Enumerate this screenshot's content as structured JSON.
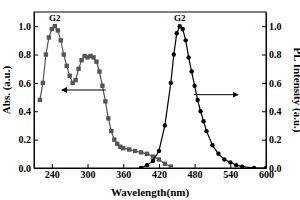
{
  "chart_data": {
    "type": "line",
    "x_label": "Wavelength(nm)",
    "y_label": "Abs. (a.u.)",
    "y2_label": "PL Intensity (a.u.)",
    "annotations": [
      "G2",
      "G2"
    ],
    "xlim": [
      210,
      600
    ],
    "xticks": [
      240,
      300,
      360,
      420,
      480,
      540,
      600
    ],
    "ylim": [
      0,
      1.1
    ],
    "yticks": [
      {
        "value": 0,
        "label": "0.0"
      },
      0.2,
      0.4,
      0.6,
      0.8,
      {
        "value": 1,
        "label": "1.0"
      }
    ],
    "y2lim": [
      0,
      1.1
    ],
    "y2ticks": [
      {
        "value": 0,
        "label": "0.0"
      },
      0.2,
      0.4,
      0.6,
      0.8,
      {
        "value": 1,
        "label": "1.0"
      }
    ],
    "series": [
      {
        "color": "#555555",
        "marker": "square",
        "line_style": "solid",
        "x": [
          220,
          225,
          230,
          235,
          240,
          245,
          250,
          255,
          260,
          265,
          270,
          275,
          280,
          285,
          290,
          295,
          300,
          305,
          310,
          315,
          320,
          325,
          330,
          335,
          340,
          345,
          350,
          355,
          360,
          370,
          380,
          390,
          400,
          410,
          420,
          430,
          440
        ],
        "values": [
          0.48,
          0.6,
          0.8,
          0.92,
          0.98,
          1.0,
          0.97,
          0.9,
          0.8,
          0.72,
          0.65,
          0.6,
          0.62,
          0.7,
          0.76,
          0.79,
          0.78,
          0.79,
          0.78,
          0.75,
          0.68,
          0.58,
          0.47,
          0.35,
          0.26,
          0.2,
          0.17,
          0.15,
          0.14,
          0.13,
          0.12,
          0.11,
          0.1,
          0.08,
          0.06,
          0.03,
          0.01
        ]
      },
      {
        "color": "#000000",
        "marker": "circle",
        "line_style": "solid",
        "axis": "y2",
        "x": [
          390,
          400,
          410,
          420,
          430,
          440,
          445,
          450,
          455,
          460,
          465,
          470,
          475,
          480,
          485,
          490,
          495,
          500,
          510,
          520,
          530,
          540,
          550,
          560,
          580,
          600
        ],
        "values": [
          0.0,
          0.02,
          0.05,
          0.12,
          0.3,
          0.6,
          0.8,
          0.95,
          1.0,
          0.98,
          0.9,
          0.78,
          0.68,
          0.58,
          0.48,
          0.4,
          0.33,
          0.26,
          0.16,
          0.1,
          0.06,
          0.04,
          0.02,
          0.01,
          0.0,
          0.0
        ]
      }
    ]
  }
}
